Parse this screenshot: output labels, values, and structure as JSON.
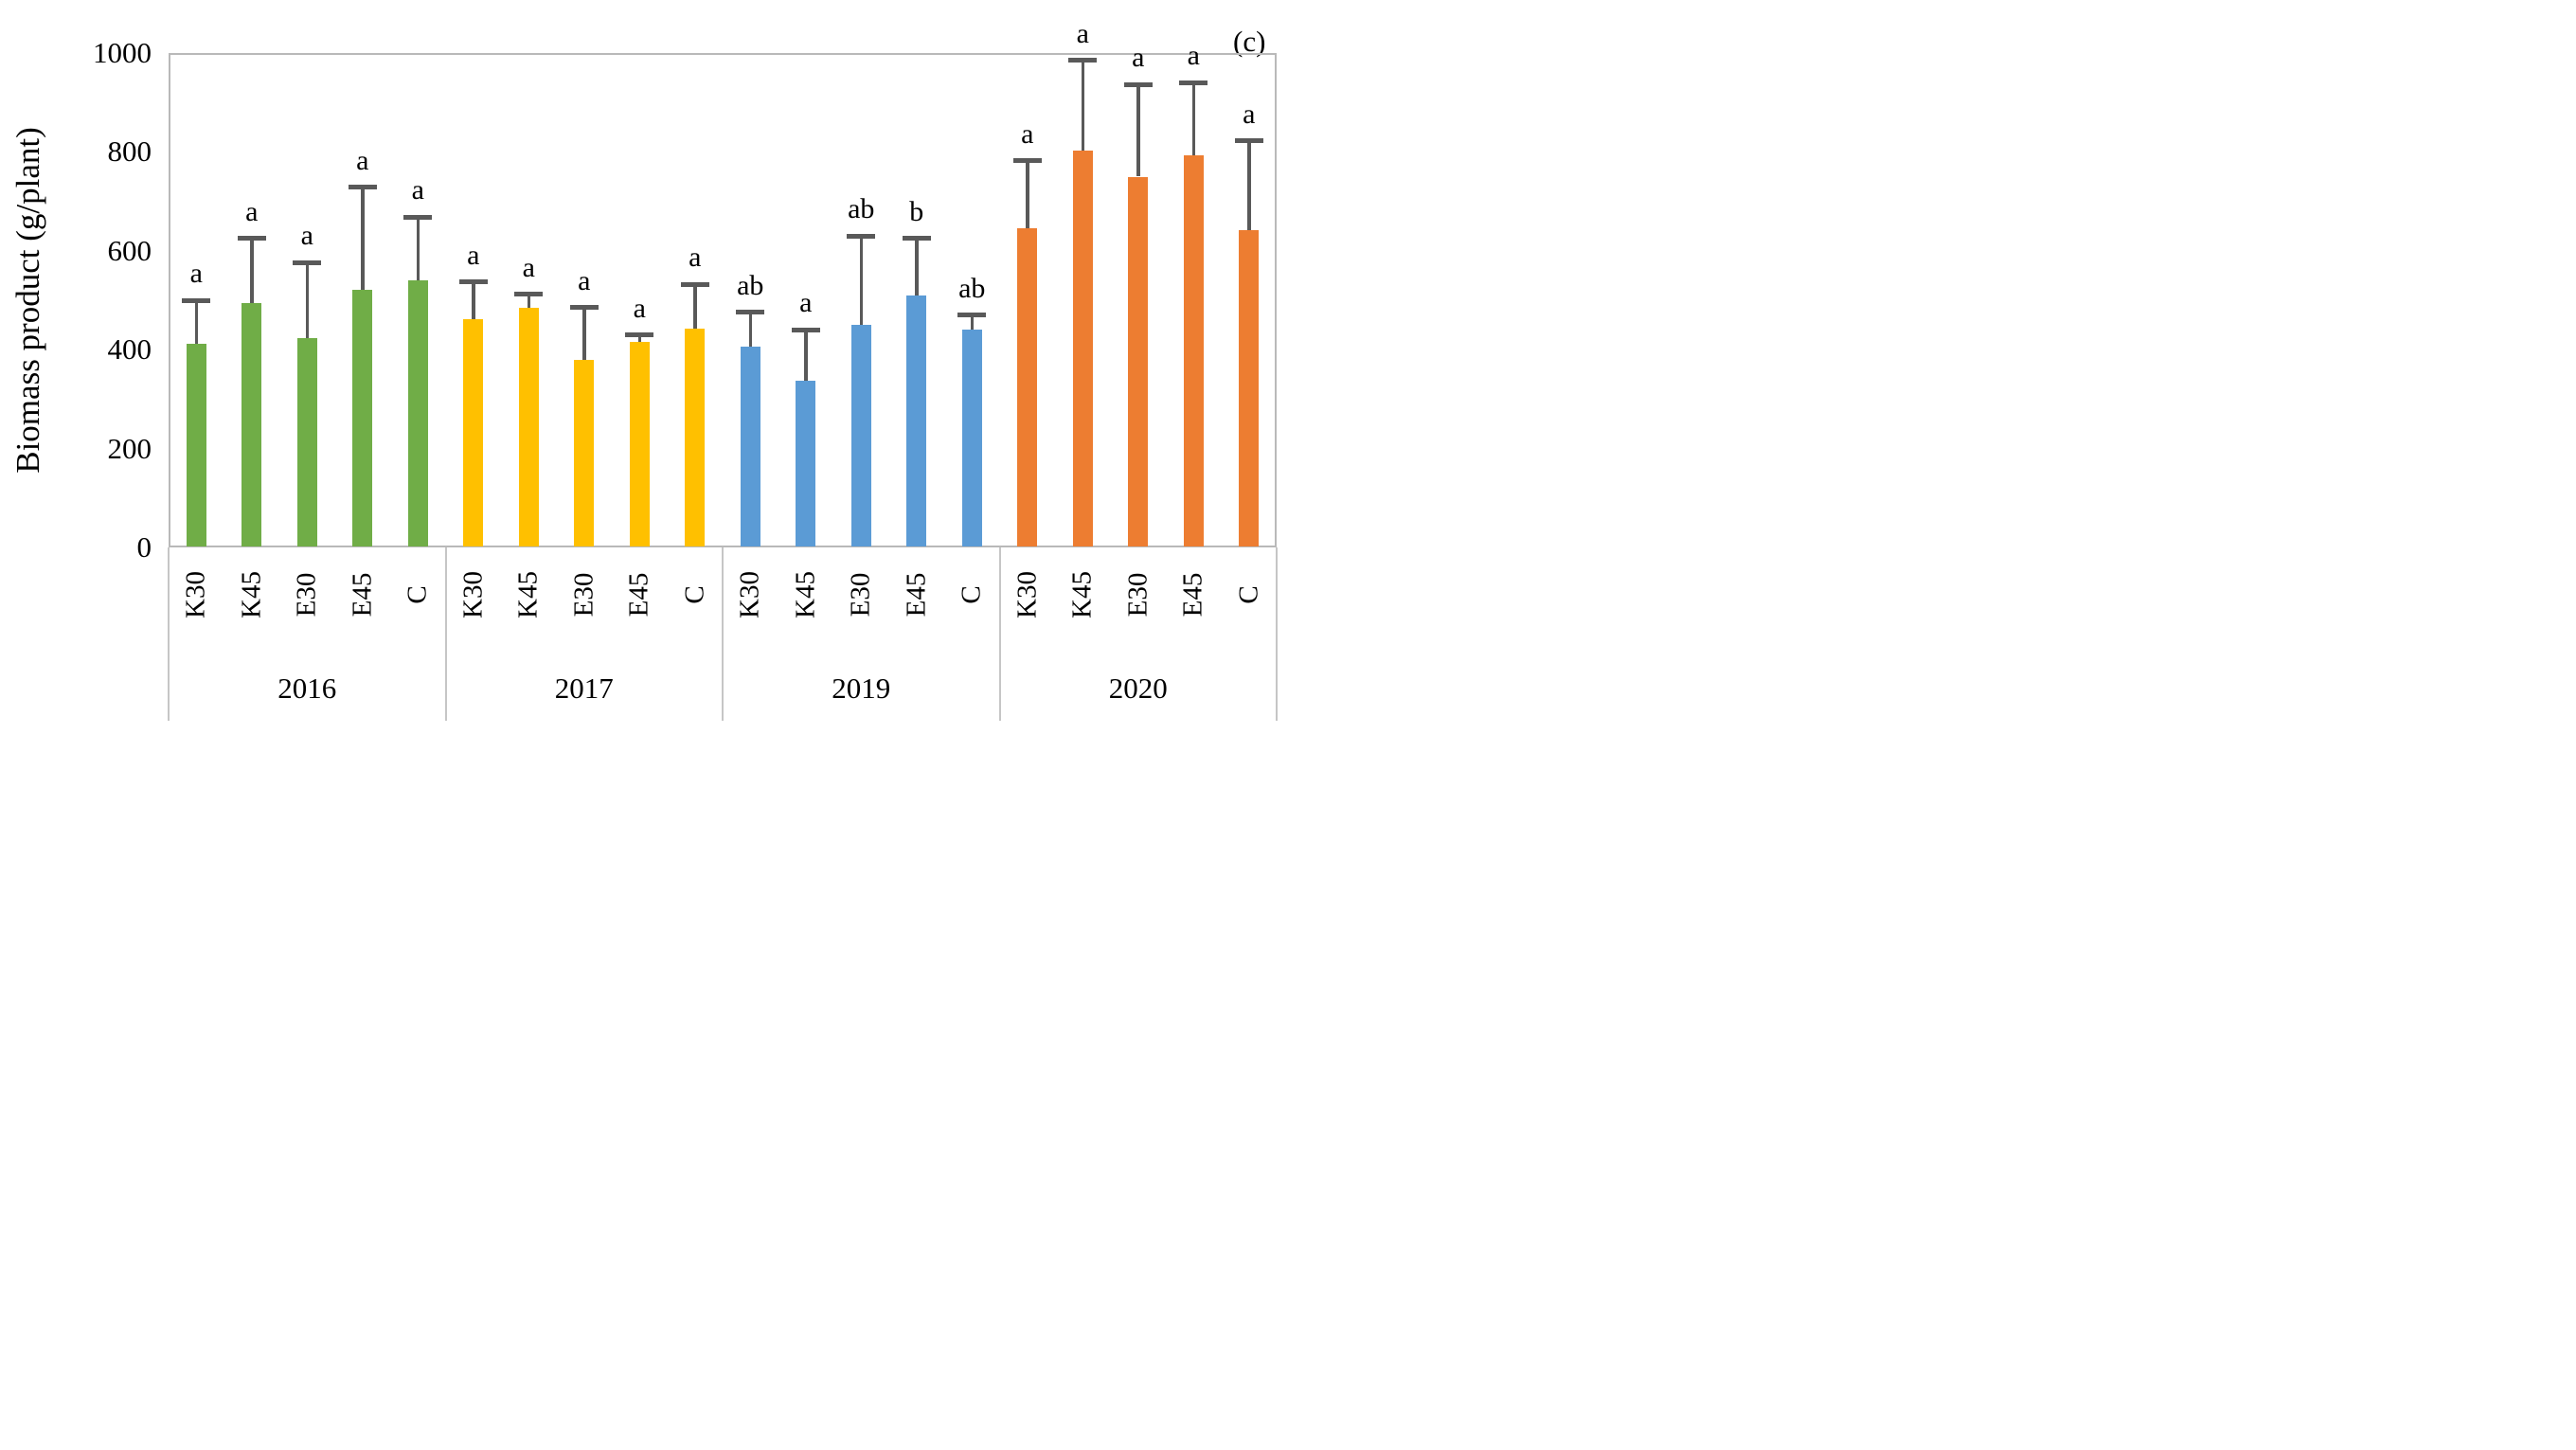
{
  "figure": {
    "panel_label": "(c)",
    "background": "#ffffff"
  },
  "chart_data": {
    "type": "bar",
    "title": "",
    "xlabel": "",
    "ylabel": "Biomass product (g/plant)",
    "ylim": [
      0,
      1000
    ],
    "yticks": [
      0,
      200,
      400,
      600,
      800,
      1000
    ],
    "grid": false,
    "legend": "none",
    "error_bars": "upper_only",
    "categories": [
      "K30",
      "K45",
      "E30",
      "E45",
      "C"
    ],
    "groups": [
      {
        "year": "2016",
        "color": "#70AD47",
        "bars": [
          {
            "label": "K30",
            "value": 412,
            "err_top": 500,
            "sig": "a"
          },
          {
            "label": "K45",
            "value": 495,
            "err_top": 625,
            "sig": "a"
          },
          {
            "label": "E30",
            "value": 424,
            "err_top": 576,
            "sig": "a"
          },
          {
            "label": "E45",
            "value": 521,
            "err_top": 728,
            "sig": "a"
          },
          {
            "label": "C",
            "value": 540,
            "err_top": 668,
            "sig": "a"
          }
        ]
      },
      {
        "year": "2017",
        "color": "#FFC000",
        "bars": [
          {
            "label": "K30",
            "value": 462,
            "err_top": 537,
            "sig": "a"
          },
          {
            "label": "K45",
            "value": 485,
            "err_top": 512,
            "sig": "a"
          },
          {
            "label": "E30",
            "value": 380,
            "err_top": 485,
            "sig": "a"
          },
          {
            "label": "E45",
            "value": 415,
            "err_top": 430,
            "sig": "a"
          },
          {
            "label": "C",
            "value": 442,
            "err_top": 532,
            "sig": "a"
          }
        ]
      },
      {
        "year": "2019",
        "color": "#5B9BD5",
        "bars": [
          {
            "label": "K30",
            "value": 406,
            "err_top": 476,
            "sig": "ab"
          },
          {
            "label": "K45",
            "value": 337,
            "err_top": 440,
            "sig": "a"
          },
          {
            "label": "E30",
            "value": 450,
            "err_top": 630,
            "sig": "ab"
          },
          {
            "label": "E45",
            "value": 510,
            "err_top": 625,
            "sig": "b"
          },
          {
            "label": "C",
            "value": 440,
            "err_top": 470,
            "sig": "ab"
          }
        ]
      },
      {
        "year": "2020",
        "color": "#ED7D31",
        "bars": [
          {
            "label": "K30",
            "value": 645,
            "err_top": 782,
            "sig": "a"
          },
          {
            "label": "K45",
            "value": 803,
            "err_top": 985,
            "sig": "a"
          },
          {
            "label": "E30",
            "value": 750,
            "err_top": 936,
            "sig": "a"
          },
          {
            "label": "E45",
            "value": 793,
            "err_top": 940,
            "sig": "a"
          },
          {
            "label": "C",
            "value": 642,
            "err_top": 822,
            "sig": "a"
          }
        ]
      }
    ]
  },
  "colors": {
    "error_bar": "#595959",
    "frame": "#b9b9b9",
    "separator": "#c6c6c6",
    "text": "#000000"
  }
}
